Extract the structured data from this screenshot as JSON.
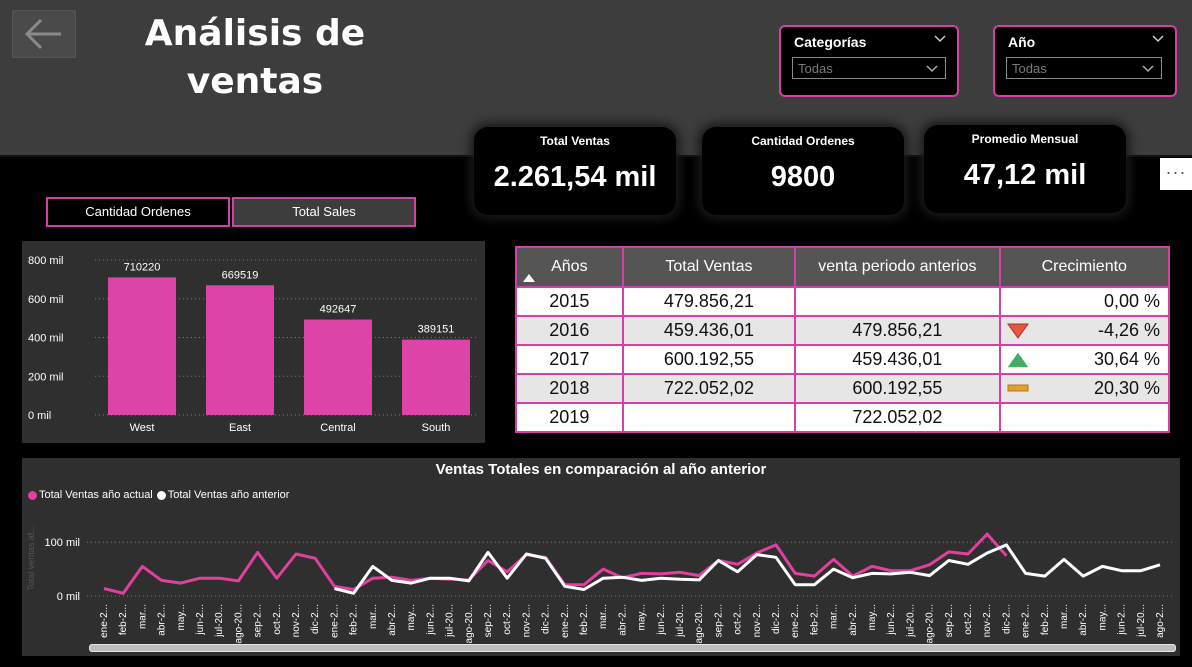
{
  "header": {
    "title_line1": "Análisis de",
    "title_line2": "ventas"
  },
  "filters": {
    "category": {
      "label": "Categorías",
      "value": "Todas"
    },
    "year": {
      "label": "Año",
      "value": "Todas"
    }
  },
  "kpis": {
    "total_sales": {
      "label": "Total Ventas",
      "value": "2.261,54 mil"
    },
    "order_count": {
      "label": "Cantidad Ordenes",
      "value": "9800"
    },
    "monthly_avg": {
      "label": "Promedio Mensual",
      "value": "47,12 mil"
    }
  },
  "more_label": "···",
  "toggle_buttons": {
    "orders": "Cantidad Ordenes",
    "sales": "Total Sales"
  },
  "growth_table": {
    "headers": [
      "Años",
      "Total Ventas",
      "venta periodo anterios",
      "Crecimiento"
    ],
    "rows": [
      {
        "year": "2015",
        "total": "479.856,21",
        "prev": "",
        "growth": "0,00 %",
        "indicator": "none"
      },
      {
        "year": "2016",
        "total": "459.436,01",
        "prev": "479.856,21",
        "growth": "-4,26 %",
        "indicator": "down"
      },
      {
        "year": "2017",
        "total": "600.192,55",
        "prev": "459.436,01",
        "growth": "30,64 %",
        "indicator": "up"
      },
      {
        "year": "2018",
        "total": "722.052,02",
        "prev": "600.192,55",
        "growth": "20,30 %",
        "indicator": "flat"
      },
      {
        "year": "2019",
        "total": "",
        "prev": "722.052,02",
        "growth": "",
        "indicator": "none"
      }
    ]
  },
  "chart_data": [
    {
      "type": "bar",
      "categories": [
        "West",
        "East",
        "Central",
        "South"
      ],
      "values": [
        710220,
        669519,
        492647,
        389151
      ],
      "data_labels": [
        "710220",
        "669519",
        "492647",
        "389151"
      ],
      "yticks": [
        "0 mil",
        "200 mil",
        "400 mil",
        "600 mil",
        "800 mil"
      ],
      "ylim": [
        0,
        800000
      ],
      "grid": true,
      "color": "#dc44a8"
    },
    {
      "type": "line",
      "title": "Ventas Totales en comparación al año anterior",
      "ylabel": "Total ventas af...",
      "yticks": [
        "0 mil",
        "100 mil"
      ],
      "ylim": [
        0,
        145000
      ],
      "legend_position": "top-left",
      "x": [
        "ene-2...",
        "feb-2...",
        "mar...",
        "abr-2...",
        "may...",
        "jun-2...",
        "jul-20...",
        "ago-20...",
        "sep-2...",
        "oct-2...",
        "nov-2...",
        "dic-2...",
        "ene-2...",
        "feb-2...",
        "mar...",
        "abr-2...",
        "may...",
        "jun-2...",
        "jul-20...",
        "ago-20...",
        "sep-2...",
        "oct-2...",
        "nov-2...",
        "dic-2...",
        "ene-2...",
        "feb-2...",
        "mar...",
        "abr-2...",
        "may...",
        "jun-2...",
        "jul-20...",
        "ago-20...",
        "sep-2...",
        "oct-2...",
        "nov-2...",
        "dic-2...",
        "ene-2...",
        "feb-2...",
        "mar...",
        "abr-2...",
        "may...",
        "jun-2...",
        "jul-20...",
        "ago-20...",
        "sep-2...",
        "oct-2...",
        "nov-2...",
        "dic-2...",
        "ene-2...",
        "feb-2...",
        "mar...",
        "abr-2...",
        "may...",
        "jun-2...",
        "jul-20...",
        "ago-2..."
      ],
      "series": [
        {
          "name": "Total Ventas año actual",
          "color": "#e0409e",
          "values": [
            14000,
            5000,
            55000,
            29000,
            24000,
            33000,
            33000,
            28000,
            81000,
            33000,
            78000,
            70000,
            18000,
            12000,
            33000,
            35000,
            29000,
            33000,
            31000,
            30000,
            66000,
            45000,
            77000,
            72000,
            21000,
            21000,
            50000,
            34000,
            42000,
            41000,
            44000,
            38000,
            66000,
            59000,
            80000,
            95000,
            42000,
            37000,
            68000,
            37000,
            55000,
            47000,
            47000,
            58000,
            82000,
            78000,
            115000,
            75000,
            null,
            null,
            null,
            null,
            null,
            null,
            null,
            null
          ]
        },
        {
          "name": "Total Ventas año anterior",
          "color": "#ffffff",
          "values": [
            null,
            null,
            null,
            null,
            null,
            null,
            null,
            null,
            null,
            null,
            null,
            null,
            14000,
            5000,
            55000,
            29000,
            24000,
            33000,
            33000,
            28000,
            81000,
            33000,
            78000,
            70000,
            18000,
            12000,
            33000,
            35000,
            29000,
            33000,
            31000,
            30000,
            66000,
            45000,
            77000,
            72000,
            21000,
            21000,
            50000,
            34000,
            42000,
            41000,
            44000,
            38000,
            66000,
            59000,
            80000,
            95000,
            42000,
            37000,
            68000,
            37000,
            55000,
            47000,
            47000,
            58000
          ]
        }
      ]
    }
  ]
}
